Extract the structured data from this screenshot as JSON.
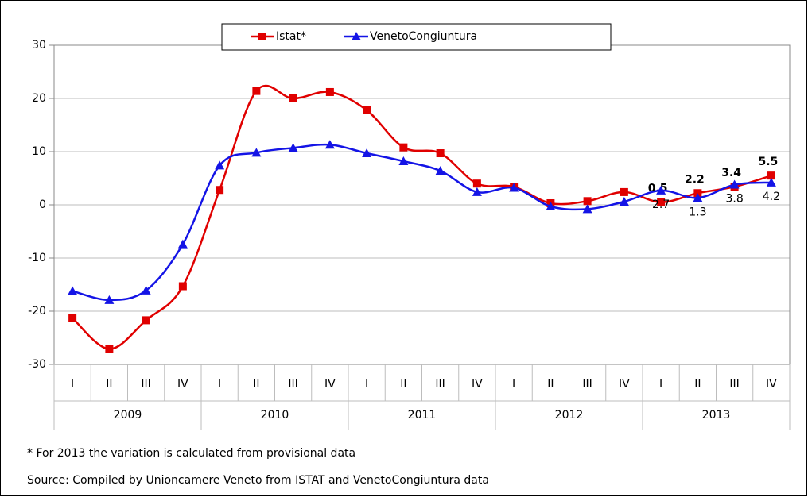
{
  "chart_data": {
    "type": "line",
    "legend": "top",
    "categories": [
      "I",
      "II",
      "III",
      "IV",
      "I",
      "II",
      "III",
      "IV",
      "I",
      "II",
      "III",
      "IV",
      "I",
      "II",
      "III",
      "IV",
      "I",
      "II",
      "III",
      "IV"
    ],
    "years": [
      "2009",
      "2010",
      "2011",
      "2012",
      "2013"
    ],
    "series": [
      {
        "name": "Istat*",
        "color": "#e00000",
        "marker": "square",
        "values": [
          -21.3,
          -27.1,
          -21.7,
          -15.3,
          2.8,
          21.4,
          20.0,
          21.2,
          17.8,
          10.8,
          9.7,
          4.0,
          3.4,
          0.3,
          0.7,
          2.4,
          0.5,
          2.2,
          3.4,
          5.5
        ],
        "value_labels": [
          null,
          null,
          null,
          null,
          null,
          null,
          null,
          null,
          null,
          null,
          null,
          null,
          null,
          null,
          null,
          null,
          "0.5",
          "2.2",
          "3.4",
          "5.5"
        ]
      },
      {
        "name": "VenetoCongiuntura",
        "color": "#1414e6",
        "marker": "triangle",
        "values": [
          -16.2,
          -17.9,
          -16.1,
          -7.4,
          7.4,
          9.8,
          10.7,
          11.3,
          9.7,
          8.2,
          6.4,
          2.4,
          3.2,
          -0.3,
          -0.8,
          0.6,
          2.7,
          1.3,
          3.8,
          4.2
        ],
        "value_labels": [
          null,
          null,
          null,
          null,
          null,
          null,
          null,
          null,
          null,
          null,
          null,
          null,
          null,
          null,
          null,
          null,
          "2.7",
          "1.3",
          "3.8",
          "4.2"
        ]
      }
    ],
    "ylim": [
      -30,
      30
    ],
    "yticks": [
      -30,
      -20,
      -10,
      0,
      10,
      20,
      30
    ],
    "grid": true,
    "footnote": "* For 2013 the variation is calculated from provisional data",
    "source": "Source: Compiled by Unioncamere Veneto from ISTAT and VenetoCongiuntura data"
  }
}
